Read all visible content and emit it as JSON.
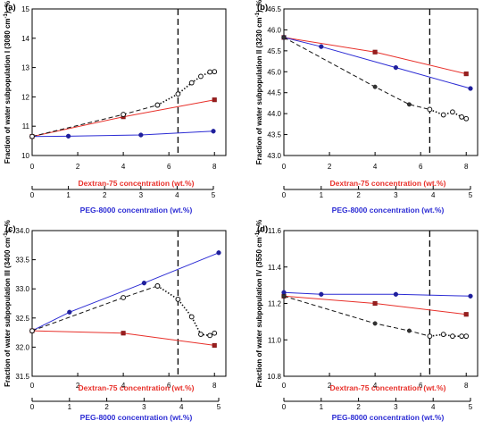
{
  "figure": {
    "title": ""
  },
  "chart_data": [
    {
      "id": "a",
      "panel_label": "(a)",
      "type": "line",
      "ylabel_main": "Fraction of water subpopulation I (3080 cm",
      "ylabel_sup": "-1",
      "ylabel_tail": "), %",
      "xlabel_dextran": "Dextran-75 concentration (wt.%)",
      "xlabel_peg": "PEG-8000 concentration (wt.%)",
      "dextran_ticks": [
        "0",
        "2",
        "4",
        "6",
        "8"
      ],
      "peg_ticks": [
        "0",
        "1",
        "2",
        "3",
        "4",
        "5"
      ],
      "y_ticks": [
        "10",
        "11",
        "12",
        "13",
        "14",
        "15"
      ],
      "ylim": [
        10,
        15
      ],
      "dextran_lim": [
        0,
        8.5
      ],
      "vline_dextran": 6.4,
      "series": [
        {
          "axis": "dextran",
          "color": "#e8302a",
          "marker": "square",
          "dash": "none",
          "x": [
            0,
            4,
            8
          ],
          "y": [
            10.65,
            11.32,
            11.9
          ]
        },
        {
          "axis": "peg",
          "color": "#2b2bd4",
          "marker": "circle",
          "dash": "none",
          "x": [
            0,
            1,
            3,
            5
          ],
          "y": [
            10.65,
            10.66,
            10.7,
            10.83
          ]
        },
        {
          "axis": "dextran",
          "color": "#111111",
          "marker": "open-circle",
          "dash": "long",
          "x": [
            0,
            4,
            5.5
          ],
          "y": [
            10.65,
            11.4,
            11.72
          ]
        },
        {
          "axis": "dextran",
          "color": "#111111",
          "marker": "open-circle",
          "dash": "dot",
          "x": [
            5.5,
            6.4,
            7.0,
            7.4,
            7.8,
            8.0
          ],
          "y": [
            11.72,
            12.1,
            12.48,
            12.7,
            12.85,
            12.86
          ]
        }
      ]
    },
    {
      "id": "b",
      "panel_label": "(b)",
      "type": "line",
      "ylabel_main": "Fraction of water subpopulation II (3230 cm",
      "ylabel_sup": "-1",
      "ylabel_tail": "), %",
      "xlabel_dextran": "Dextran-75 concentration (wt.%)",
      "xlabel_peg": "PEG-8000 concentration (wt.%)",
      "dextran_ticks": [
        "0",
        "2",
        "4",
        "6",
        "8"
      ],
      "peg_ticks": [
        "0",
        "1",
        "2",
        "3",
        "4",
        "5"
      ],
      "y_ticks": [
        "43.0",
        "43.5",
        "44.0",
        "44.5",
        "45.0",
        "45.5",
        "46.0",
        "46.5"
      ],
      "ylim": [
        43.0,
        46.5
      ],
      "dextran_lim": [
        0,
        8.5
      ],
      "vline_dextran": 6.4,
      "series": [
        {
          "axis": "dextran",
          "color": "#e8302a",
          "marker": "square",
          "dash": "none",
          "x": [
            0,
            4,
            8
          ],
          "y": [
            45.82,
            45.47,
            44.95
          ]
        },
        {
          "axis": "peg",
          "color": "#2b2bd4",
          "marker": "circle",
          "dash": "none",
          "x": [
            0,
            1,
            3,
            5
          ],
          "y": [
            45.82,
            45.6,
            45.1,
            44.6
          ]
        },
        {
          "axis": "dextran",
          "color": "#111111",
          "marker": "filled-circle",
          "dash": "long",
          "x": [
            0,
            4,
            5.5,
            6.4
          ],
          "y": [
            45.82,
            44.64,
            44.22,
            44.1
          ]
        },
        {
          "axis": "dextran",
          "color": "#111111",
          "marker": "open-circle",
          "dash": "dot",
          "x": [
            6.4,
            7.0,
            7.4,
            7.8,
            8.0
          ],
          "y": [
            44.1,
            43.97,
            44.04,
            43.92,
            43.88
          ]
        }
      ]
    },
    {
      "id": "c",
      "panel_label": "(c)",
      "type": "line",
      "ylabel_main": "Fraction of water subpopulation III (3400 cm",
      "ylabel_sup": "-1",
      "ylabel_tail": "), %",
      "xlabel_dextran": "Dextran-75 concentration (wt.%)",
      "xlabel_peg": "PEG-8000 concentration (wt.%)",
      "dextran_ticks": [
        "0",
        "2",
        "4",
        "6",
        "8"
      ],
      "peg_ticks": [
        "0",
        "1",
        "2",
        "3",
        "4",
        "5"
      ],
      "y_ticks": [
        "31.5",
        "32.0",
        "32.5",
        "33.0",
        "33.5",
        "34.0"
      ],
      "ylim": [
        31.5,
        34.0
      ],
      "dextran_lim": [
        0,
        8.5
      ],
      "vline_dextran": 6.4,
      "series": [
        {
          "axis": "dextran",
          "color": "#e8302a",
          "marker": "square",
          "dash": "none",
          "x": [
            0,
            4,
            8
          ],
          "y": [
            32.28,
            32.24,
            32.03
          ]
        },
        {
          "axis": "peg",
          "color": "#2b2bd4",
          "marker": "circle",
          "dash": "none",
          "x": [
            0,
            1,
            3,
            5
          ],
          "y": [
            32.28,
            32.6,
            33.1,
            33.62
          ]
        },
        {
          "axis": "dextran",
          "color": "#111111",
          "marker": "open-circle",
          "dash": "long",
          "x": [
            0,
            4,
            5.5
          ],
          "y": [
            32.28,
            32.85,
            33.05
          ]
        },
        {
          "axis": "dextran",
          "color": "#111111",
          "marker": "open-circle",
          "dash": "dot",
          "x": [
            5.5,
            6.4,
            7.0,
            7.4,
            7.8,
            8.0
          ],
          "y": [
            33.05,
            32.82,
            32.52,
            32.22,
            32.2,
            32.24
          ]
        }
      ]
    },
    {
      "id": "d",
      "panel_label": "(d)",
      "type": "line",
      "ylabel_main": "Fraction of water subpopulation IV (3550 cm",
      "ylabel_sup": "-1",
      "ylabel_tail": "), %",
      "xlabel_dextran": "Dextran-75 concentration (wt.%)",
      "xlabel_peg": "PEG-8000 concentration (wt.%)",
      "dextran_ticks": [
        "0",
        "2",
        "4",
        "6",
        "8"
      ],
      "peg_ticks": [
        "0",
        "1",
        "2",
        "3",
        "4",
        "5"
      ],
      "y_ticks": [
        "10.8",
        "11.0",
        "11.2",
        "11.4",
        "11.6"
      ],
      "ylim": [
        10.8,
        11.6
      ],
      "dextran_lim": [
        0,
        8.5
      ],
      "vline_dextran": 6.4,
      "series": [
        {
          "axis": "dextran",
          "color": "#e8302a",
          "marker": "square",
          "dash": "none",
          "x": [
            0,
            4,
            8
          ],
          "y": [
            11.24,
            11.2,
            11.14
          ]
        },
        {
          "axis": "peg",
          "color": "#2b2bd4",
          "marker": "circle",
          "dash": "none",
          "x": [
            0,
            1,
            3,
            5
          ],
          "y": [
            11.26,
            11.25,
            11.25,
            11.24
          ]
        },
        {
          "axis": "dextran",
          "color": "#111111",
          "marker": "filled-circle",
          "dash": "long",
          "x": [
            0,
            4,
            5.5,
            6.4
          ],
          "y": [
            11.24,
            11.09,
            11.05,
            11.02
          ]
        },
        {
          "axis": "dextran",
          "color": "#111111",
          "marker": "open-circle",
          "dash": "dot",
          "x": [
            6.4,
            7.0,
            7.4,
            7.8,
            8.0
          ],
          "y": [
            11.02,
            11.03,
            11.02,
            11.02,
            11.02
          ]
        }
      ]
    }
  ]
}
